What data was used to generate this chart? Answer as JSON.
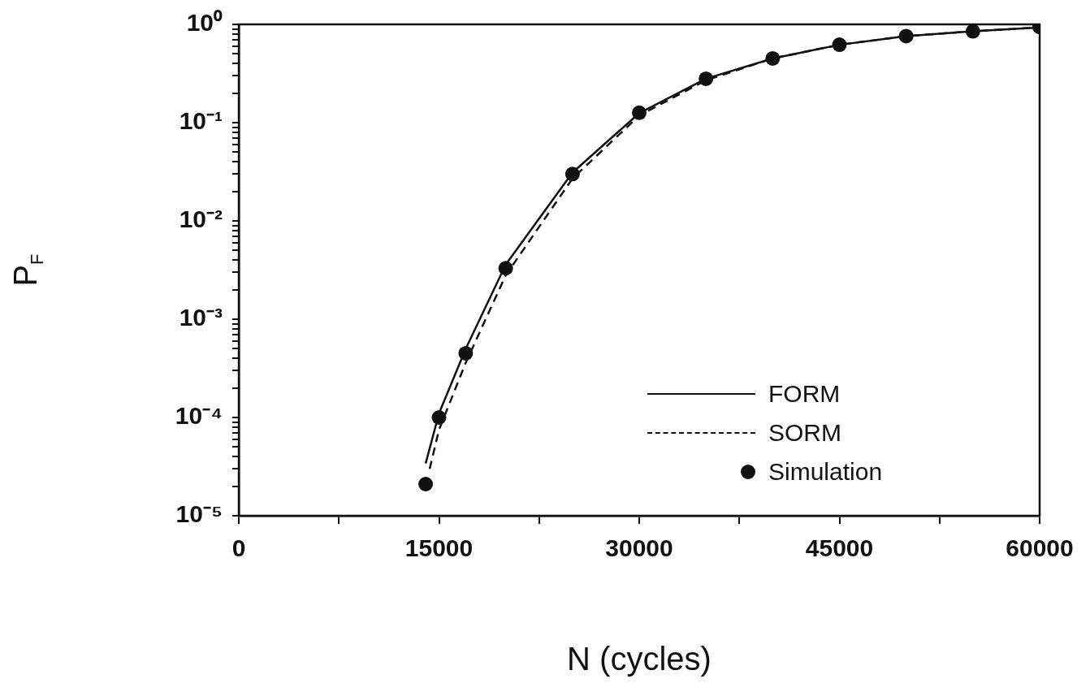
{
  "chart_data": {
    "type": "line",
    "xlabel": "N (cycles)",
    "ylabel": "P$_{F}$",
    "log": "y",
    "grid": false,
    "legend": "bottom right",
    "xlim": [
      0,
      60000
    ],
    "xticks": [
      0,
      {
        "value": 7500,
        "label": null
      },
      15000,
      {
        "value": 22500,
        "label": null
      },
      30000,
      {
        "value": 37500,
        "label": null
      },
      45000,
      {
        "value": 52500,
        "label": null
      },
      60000
    ],
    "ylim": [
      1e-05,
      1
    ],
    "yticks": [
      {
        "value": 1e-05,
        "label": "10⁻⁵"
      },
      {
        "value": 2e-05,
        "label": null
      },
      {
        "value": 3e-05,
        "label": null
      },
      {
        "value": 4e-05,
        "label": null
      },
      {
        "value": 5e-05,
        "label": null
      },
      {
        "value": 6e-05,
        "label": null
      },
      {
        "value": 7e-05,
        "label": null
      },
      {
        "value": 8e-05,
        "label": null
      },
      {
        "value": 9e-05,
        "label": null
      },
      {
        "value": 0.0001,
        "label": "10⁻⁴"
      },
      {
        "value": 0.0002,
        "label": null
      },
      {
        "value": 0.0003,
        "label": null
      },
      {
        "value": 0.0004,
        "label": null
      },
      {
        "value": 0.0005,
        "label": null
      },
      {
        "value": 0.0006,
        "label": null
      },
      {
        "value": 0.0007,
        "label": null
      },
      {
        "value": 0.0008,
        "label": null
      },
      {
        "value": 0.0009,
        "label": null
      },
      {
        "value": 0.001,
        "label": "10⁻³"
      },
      {
        "value": 0.002,
        "label": null
      },
      {
        "value": 0.003,
        "label": null
      },
      {
        "value": 0.004,
        "label": null
      },
      {
        "value": 0.005,
        "label": null
      },
      {
        "value": 0.006,
        "label": null
      },
      {
        "value": 0.007,
        "label": null
      },
      {
        "value": 0.008,
        "label": null
      },
      {
        "value": 0.009,
        "label": null
      },
      {
        "value": 0.01,
        "label": "10⁻²"
      },
      {
        "value": 0.02,
        "label": null
      },
      {
        "value": 0.03,
        "label": null
      },
      {
        "value": 0.04,
        "label": null
      },
      {
        "value": 0.05,
        "label": null
      },
      {
        "value": 0.06,
        "label": null
      },
      {
        "value": 0.07,
        "label": null
      },
      {
        "value": 0.08,
        "label": null
      },
      {
        "value": 0.09,
        "label": null
      },
      {
        "value": 0.1,
        "label": "10⁻¹"
      },
      {
        "value": 0.2,
        "label": null
      },
      {
        "value": 0.3,
        "label": null
      },
      {
        "value": 0.4,
        "label": null
      },
      {
        "value": 0.5,
        "label": null
      },
      {
        "value": 0.6,
        "label": null
      },
      {
        "value": 0.7,
        "label": null
      },
      {
        "value": 0.8,
        "label": null
      },
      {
        "value": 0.9,
        "label": null
      },
      {
        "value": 1,
        "label": "10⁰"
      }
    ],
    "series": [
      {
        "name": "FORM",
        "line_style": "solid",
        "color": "#111111",
        "x": [
          14000,
          15000,
          17000,
          20000,
          25000,
          30000,
          35000,
          40000,
          45000,
          50000,
          55000,
          60000
        ],
        "values": [
          3.4e-05,
          0.00011,
          0.0005,
          0.0036,
          0.031,
          0.125,
          0.28,
          0.45,
          0.62,
          0.76,
          0.85,
          0.93
        ]
      },
      {
        "name": "SORM",
        "line_style": "dashed",
        "color": "#111111",
        "x": [
          14300,
          15000,
          17000,
          20000,
          25000,
          30000,
          35000,
          40000,
          45000,
          50000,
          55000,
          60000
        ],
        "values": [
          3e-05,
          7.5e-05,
          0.00036,
          0.0028,
          0.027,
          0.118,
          0.27,
          0.45,
          0.62,
          0.76,
          0.85,
          0.93
        ]
      },
      {
        "name": "Simulation",
        "type": "scatter",
        "marker": "circle",
        "color": "#111111",
        "x": [
          14000,
          15000,
          17000,
          20000,
          25000,
          30000,
          35000,
          40000,
          45000,
          50000,
          55000,
          60000
        ],
        "values": [
          2.1e-05,
          0.0001,
          0.00045,
          0.0033,
          0.03,
          0.126,
          0.28,
          0.45,
          0.62,
          0.76,
          0.85,
          0.94
        ]
      }
    ]
  }
}
